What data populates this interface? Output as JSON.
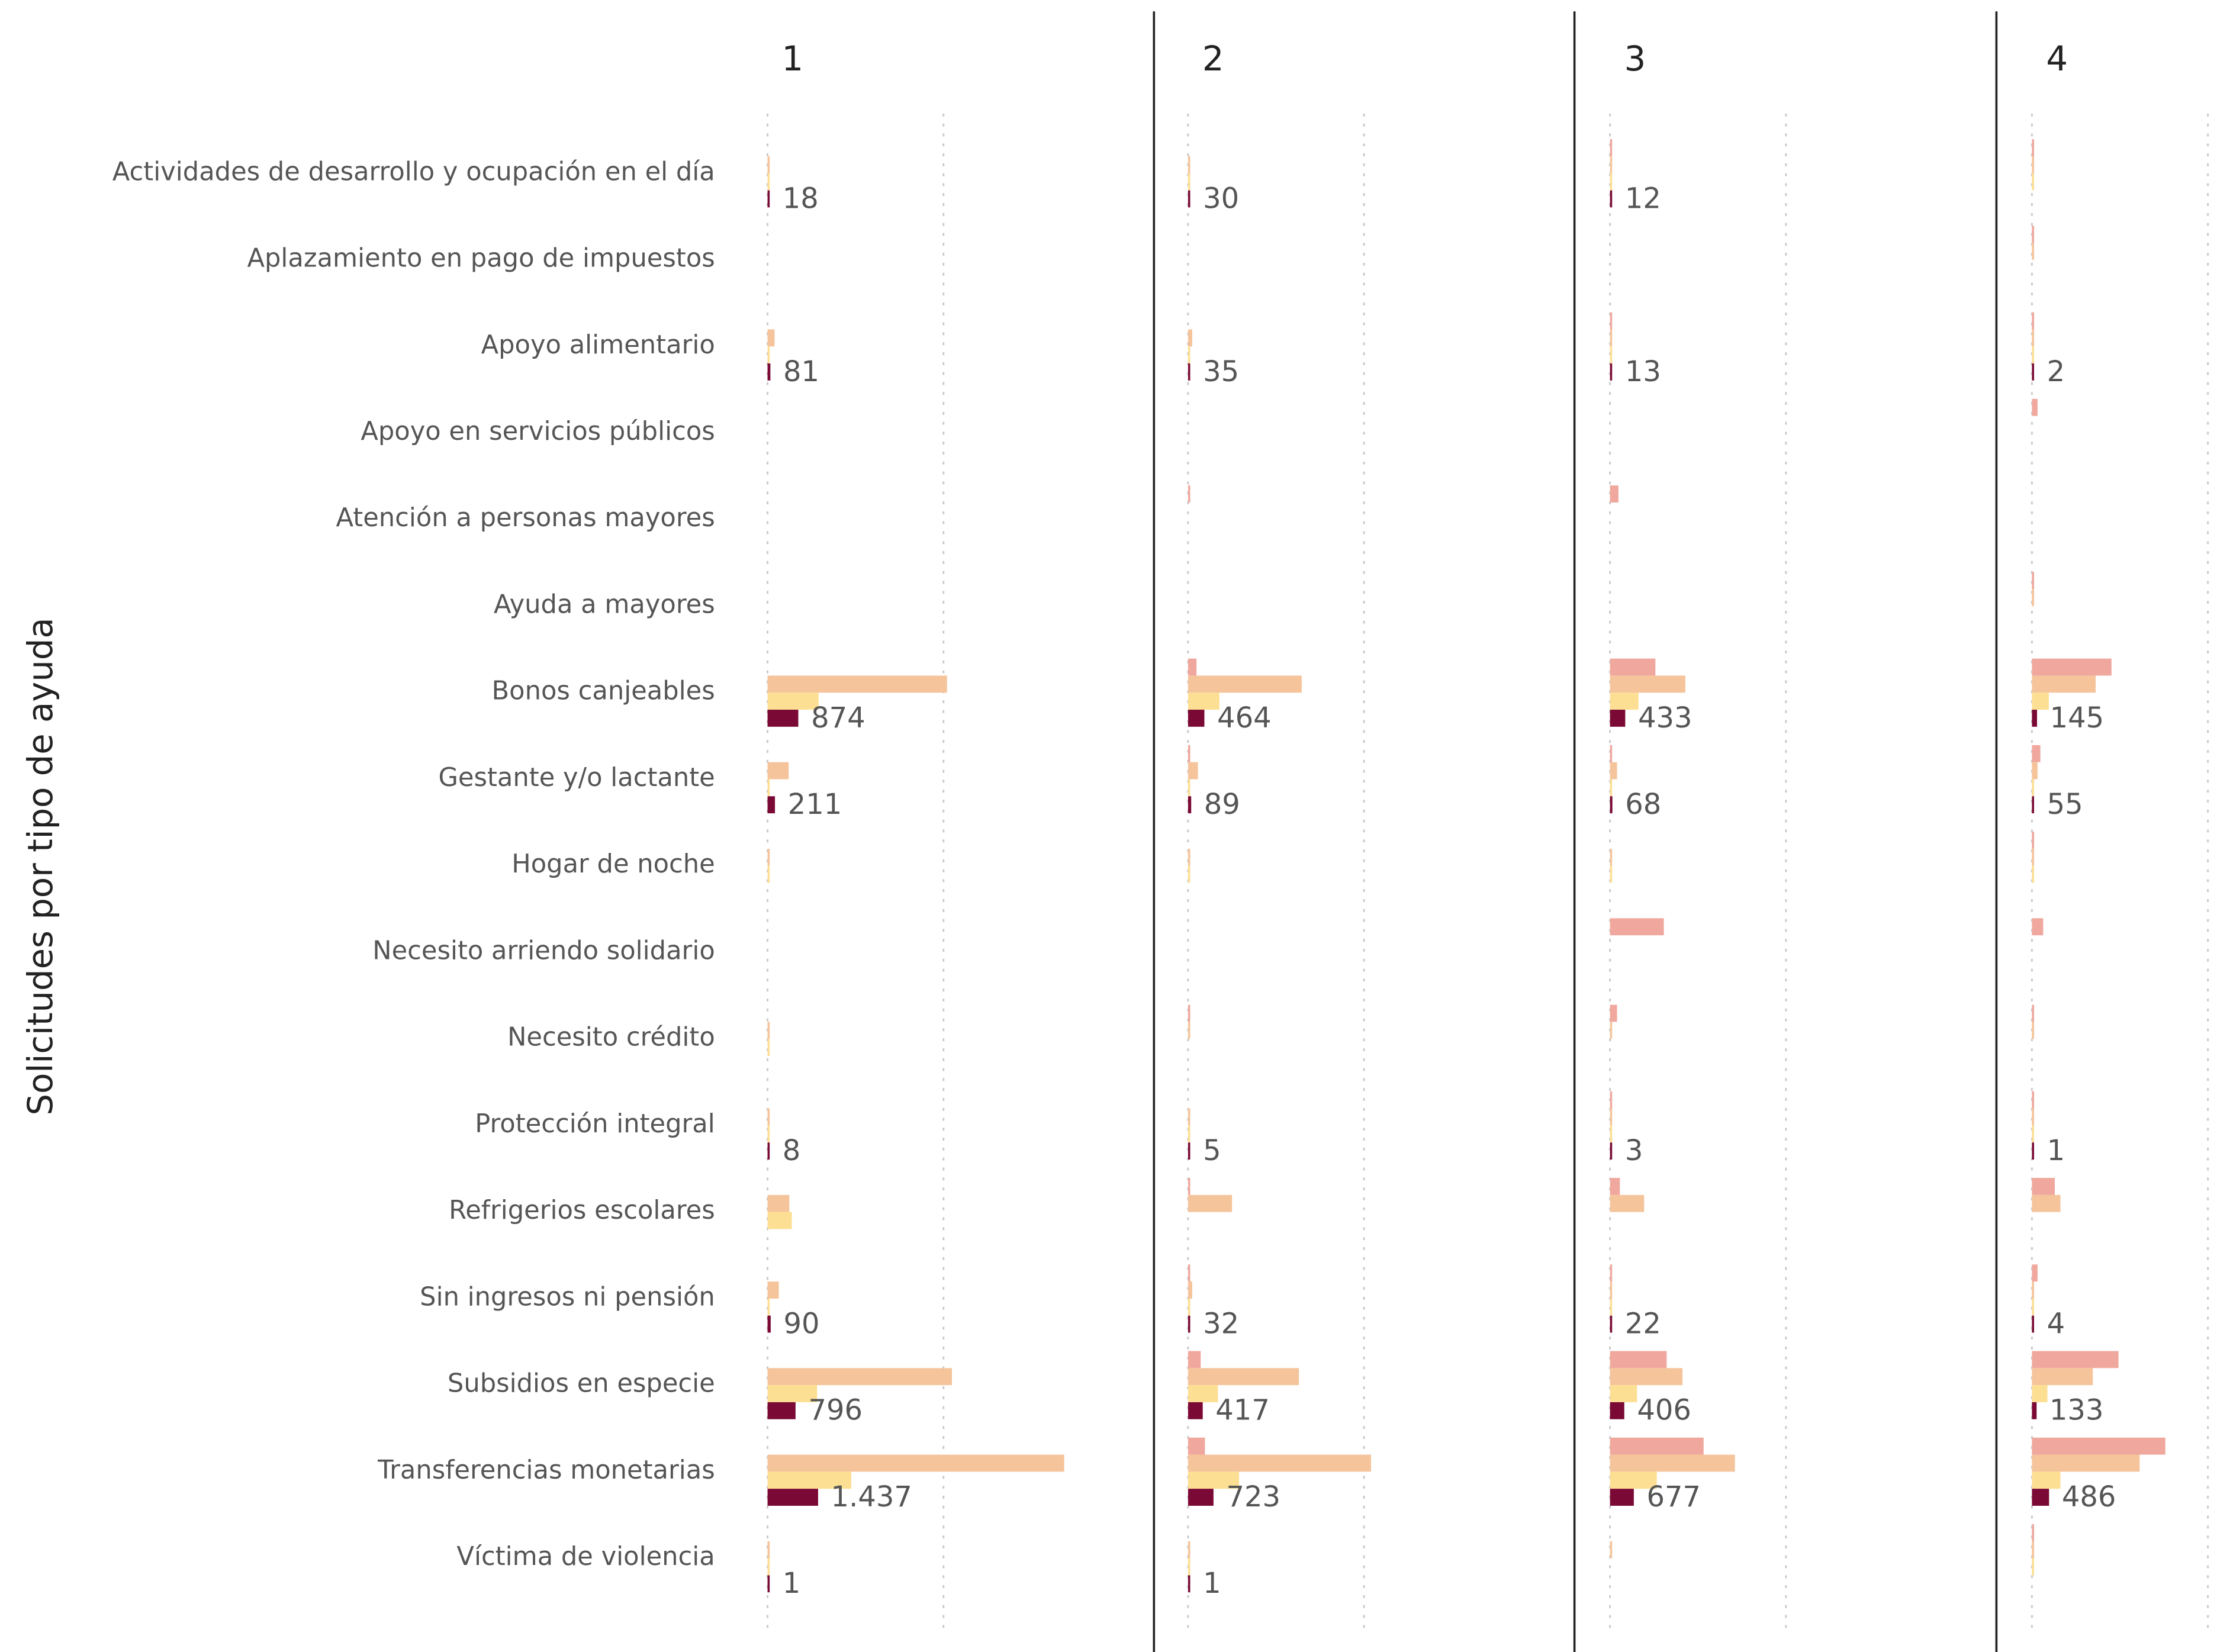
{
  "chart_data": {
    "type": "bar",
    "orientation": "horizontal",
    "ytitle": "Solicitudes por tipo de ayuda",
    "categories": [
      "Actividades de desarrollo y ocupación en el día",
      "Aplazamiento en pago de impuestos",
      "Apoyo alimentario",
      "Apoyo en servicios públicos",
      "Atención a personas mayores",
      "Ayuda a mayores",
      "Bonos canjeables",
      "Gestante y/o lactante",
      "Hogar de noche",
      "Necesito arriendo solidario",
      "Necesito crédito",
      "Protección integral",
      "Refrigerios escolares",
      "Sin ingresos ni pensión",
      "Subsidios en especie",
      "Transferencias monetarias",
      "Víctima de violencia"
    ],
    "xlim": [
      0,
      10900
    ],
    "xticks": [
      0,
      5000
    ],
    "grid": true,
    "panels": [
      {
        "title": "1",
        "series": [
          {
            "color": "#f0a89e",
            "values": [
              null,
              null,
              null,
              null,
              null,
              null,
              null,
              null,
              null,
              null,
              null,
              null,
              null,
              null,
              null,
              null,
              null
            ]
          },
          {
            "color": "#f5c49b",
            "values": [
              40,
              null,
              200,
              null,
              null,
              null,
              5100,
              600,
              50,
              null,
              40,
              30,
              620,
              320,
              5240,
              8430,
              30
            ]
          },
          {
            "color": "#fddf94",
            "values": [
              20,
              null,
              30,
              null,
              null,
              null,
              1450,
              50,
              20,
              null,
              20,
              15,
              690,
              40,
              1410,
              2380,
              15
            ]
          },
          {
            "color": "#7a0a35",
            "labeled": true,
            "values": [
              18,
              null,
              81,
              null,
              null,
              null,
              874,
              211,
              null,
              null,
              null,
              8,
              null,
              90,
              796,
              1437,
              1
            ],
            "value_labels": [
              "18",
              null,
              "81",
              null,
              null,
              null,
              "874",
              "211",
              null,
              null,
              null,
              "8",
              null,
              "90",
              "796",
              "1.437",
              "1"
            ]
          }
        ]
      },
      {
        "title": "2",
        "series": [
          {
            "color": "#f0a89e",
            "values": [
              null,
              null,
              null,
              null,
              40,
              null,
              240,
              40,
              null,
              null,
              30,
              null,
              30,
              30,
              360,
              480,
              null
            ]
          },
          {
            "color": "#f5c49b",
            "values": [
              40,
              null,
              120,
              null,
              null,
              null,
              3230,
              280,
              40,
              null,
              30,
              30,
              1250,
              120,
              3150,
              5200,
              30
            ]
          },
          {
            "color": "#fddf94",
            "values": [
              20,
              null,
              30,
              null,
              null,
              null,
              890,
              40,
              20,
              null,
              null,
              15,
              null,
              20,
              850,
              1450,
              15
            ]
          },
          {
            "color": "#7a0a35",
            "labeled": true,
            "values": [
              30,
              null,
              35,
              null,
              null,
              null,
              464,
              89,
              null,
              null,
              null,
              5,
              null,
              32,
              417,
              723,
              1
            ]
          }
        ]
      },
      {
        "title": "3",
        "series": [
          {
            "color": "#f0a89e",
            "values": [
              30,
              null,
              40,
              null,
              240,
              null,
              1290,
              40,
              null,
              1530,
              200,
              30,
              280,
              40,
              1610,
              2660,
              null
            ]
          },
          {
            "color": "#f5c49b",
            "values": [
              40,
              null,
              60,
              null,
              null,
              null,
              2140,
              200,
              30,
              null,
              30,
              30,
              970,
              40,
              2060,
              3550,
              30
            ]
          },
          {
            "color": "#fddf94",
            "values": [
              20,
              null,
              20,
              null,
              null,
              null,
              810,
              30,
              20,
              null,
              null,
              15,
              null,
              20,
              770,
              1330,
              null
            ]
          },
          {
            "color": "#7a0a35",
            "labeled": true,
            "values": [
              12,
              null,
              13,
              null,
              null,
              null,
              433,
              68,
              null,
              null,
              null,
              3,
              null,
              22,
              406,
              677,
              null
            ]
          }
        ]
      },
      {
        "title": "4",
        "series": [
          {
            "color": "#f0a89e",
            "values": [
              40,
              30,
              40,
              160,
              null,
              30,
              2260,
              240,
              30,
              320,
              30,
              30,
              650,
              160,
              2460,
              3790,
              30
            ]
          },
          {
            "color": "#f5c49b",
            "values": [
              40,
              30,
              40,
              null,
              null,
              20,
              1810,
              160,
              30,
              null,
              30,
              30,
              810,
              40,
              1730,
              3060,
              30
            ]
          },
          {
            "color": "#fddf94",
            "values": [
              20,
              null,
              20,
              null,
              null,
              null,
              480,
              20,
              20,
              null,
              null,
              15,
              null,
              20,
              440,
              810,
              20
            ]
          },
          {
            "color": "#7a0a35",
            "labeled": true,
            "values": [
              null,
              null,
              2,
              null,
              null,
              null,
              145,
              55,
              null,
              null,
              null,
              1,
              null,
              4,
              133,
              486,
              null
            ]
          }
        ]
      }
    ]
  }
}
